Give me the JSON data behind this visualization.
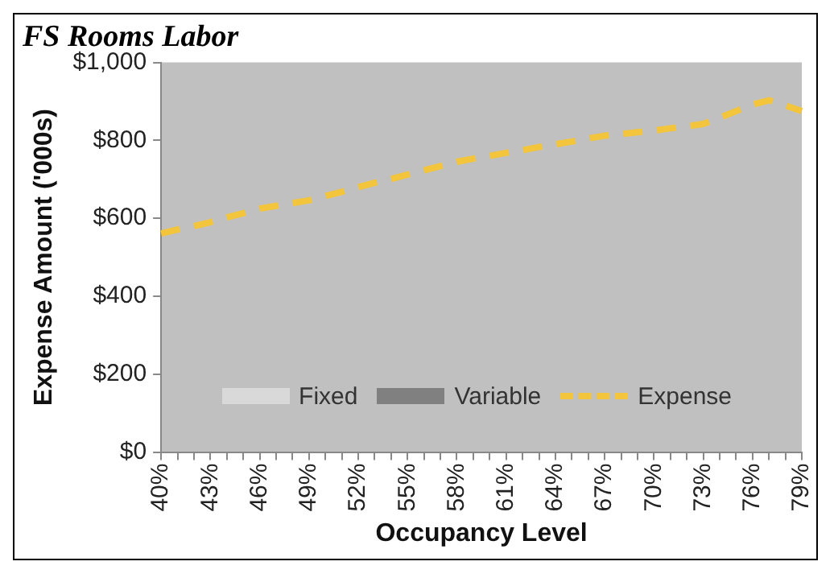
{
  "chart_data": {
    "type": "line",
    "title": "FS Rooms Labor",
    "xlabel": "Occupancy Level",
    "ylabel": "Expense Amount ('000s)",
    "categories": [
      "40%",
      null,
      null,
      "43%",
      null,
      null,
      "46%",
      null,
      null,
      "49%",
      null,
      null,
      "52%",
      null,
      null,
      "55%",
      null,
      null,
      "58%",
      null,
      null,
      "61%",
      null,
      null,
      "64%",
      null,
      null,
      "67%",
      null,
      null,
      "70%",
      null,
      null,
      "73%",
      null,
      null,
      "76%",
      null,
      null,
      "79%"
    ],
    "series": [
      {
        "name": "Fixed",
        "type": "area",
        "color": "#d9d9d9",
        "values": [
          null,
          null,
          null,
          null,
          null,
          null,
          null,
          null,
          null,
          null,
          null,
          null,
          null,
          null,
          null,
          null,
          null,
          null,
          null,
          null,
          null,
          null,
          null,
          null,
          null,
          null,
          null,
          null,
          null,
          null,
          null,
          null,
          null,
          null,
          null,
          null,
          null,
          null,
          null,
          null
        ]
      },
      {
        "name": "Variable",
        "type": "area",
        "color": "#808080",
        "values": [
          null,
          null,
          null,
          null,
          null,
          null,
          null,
          null,
          null,
          null,
          null,
          null,
          null,
          null,
          null,
          null,
          null,
          null,
          null,
          null,
          null,
          null,
          null,
          null,
          null,
          null,
          null,
          null,
          null,
          null,
          null,
          null,
          null,
          null,
          null,
          null,
          null,
          null,
          null,
          null
        ]
      },
      {
        "name": "Expense",
        "type": "line",
        "color": "#f2c53d",
        "line_style": "dashed",
        "values": [
          561,
          571,
          580,
          590,
          602,
          613,
          625,
          632,
          639,
          646,
          657,
          668,
          680,
          691,
          701,
          712,
          723,
          734,
          745,
          753,
          760,
          768,
          775,
          783,
          790,
          797,
          805,
          812,
          816,
          821,
          825,
          831,
          836,
          842,
          858,
          875,
          892,
          903,
          890,
          875
        ]
      }
    ],
    "ylim": [
      0,
      1000
    ],
    "yticks": [
      {
        "value": 0,
        "label": "$0"
      },
      {
        "value": 200,
        "label": "$200"
      },
      {
        "value": 400,
        "label": "$400"
      },
      {
        "value": 600,
        "label": "$600"
      },
      {
        "value": 800,
        "label": "$800"
      },
      {
        "value": 1000,
        "label": "$1,000"
      }
    ],
    "grid": false,
    "legend": "bottom",
    "marker": "none"
  }
}
